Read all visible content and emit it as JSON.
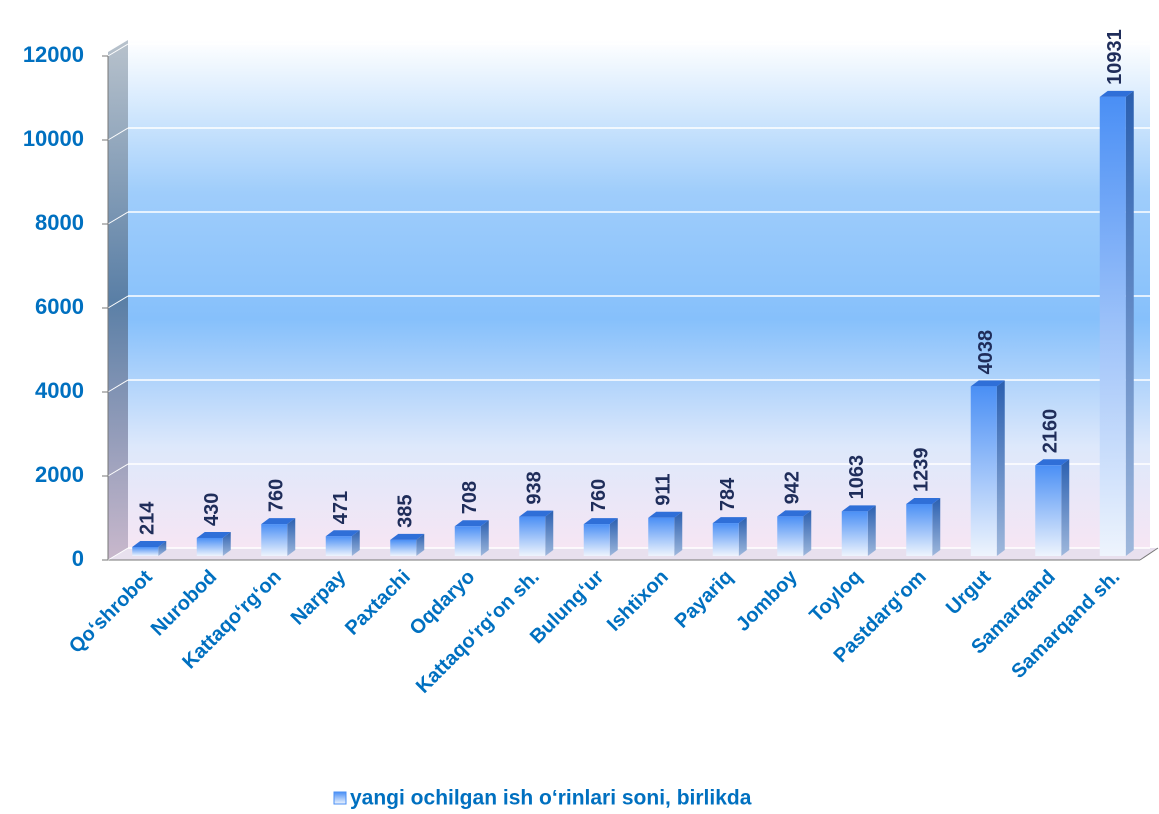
{
  "chart_data": {
    "type": "bar",
    "categories": [
      "Qo‘shrobot",
      "Nurobod",
      "Kattaqo‘rg‘on",
      "Narpay",
      "Paxtachi",
      "Oqdaryo",
      "Kattaqo‘rg‘on sh.",
      "Bulung‘ur",
      "Ishtixon",
      "Payariq",
      "Jomboy",
      "Toyloq",
      "Pastdarg‘om",
      "Urgut",
      "Samarqand",
      "Samarqand sh."
    ],
    "series": [
      {
        "name": "yangi ochilgan ish o‘rinlari soni, birlikda",
        "color": "#4a8ff5",
        "values": [
          214,
          430,
          760,
          471,
          385,
          708,
          938,
          760,
          911,
          784,
          942,
          1063,
          1239,
          4038,
          2160,
          10931
        ]
      }
    ],
    "ylim": [
      0,
      12000
    ],
    "yticks": [
      0,
      2000,
      4000,
      6000,
      8000,
      10000,
      12000
    ],
    "grid": true
  }
}
